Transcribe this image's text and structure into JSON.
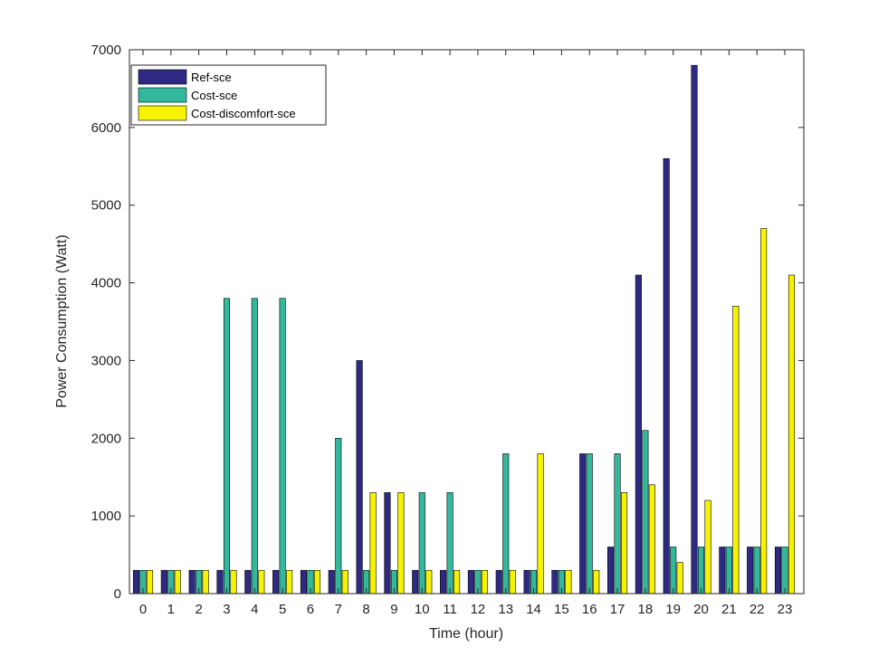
{
  "chart_data": {
    "type": "bar",
    "title": "",
    "xlabel": "Time (hour)",
    "ylabel": "Power Consumption (Watt)",
    "ylim": [
      0,
      7000
    ],
    "yticks": [
      0,
      1000,
      2000,
      3000,
      4000,
      5000,
      6000,
      7000
    ],
    "grid": false,
    "legend_position": "top-left",
    "categories": [
      "0",
      "1",
      "2",
      "3",
      "4",
      "5",
      "6",
      "7",
      "8",
      "9",
      "10",
      "11",
      "12",
      "13",
      "14",
      "15",
      "16",
      "17",
      "18",
      "19",
      "20",
      "21",
      "22",
      "23"
    ],
    "series": [
      {
        "name": "Ref-sce",
        "color": "#2e2a84",
        "values": [
          300,
          300,
          300,
          300,
          300,
          300,
          300,
          300,
          3000,
          1300,
          300,
          300,
          300,
          300,
          300,
          300,
          1800,
          600,
          4100,
          5600,
          6800,
          600,
          600,
          600
        ]
      },
      {
        "name": "Cost-sce",
        "color": "#34b89c",
        "values": [
          300,
          300,
          300,
          3800,
          3800,
          3800,
          300,
          2000,
          300,
          300,
          1300,
          1300,
          300,
          1800,
          300,
          300,
          1800,
          1800,
          2100,
          600,
          600,
          600,
          600,
          600
        ]
      },
      {
        "name": "Cost-discomfort-sce",
        "color": "#f7f300",
        "values": [
          300,
          300,
          300,
          300,
          300,
          300,
          300,
          300,
          1300,
          1300,
          300,
          300,
          300,
          300,
          1800,
          300,
          300,
          1300,
          1400,
          400,
          1200,
          3700,
          4700,
          4100
        ]
      }
    ]
  }
}
